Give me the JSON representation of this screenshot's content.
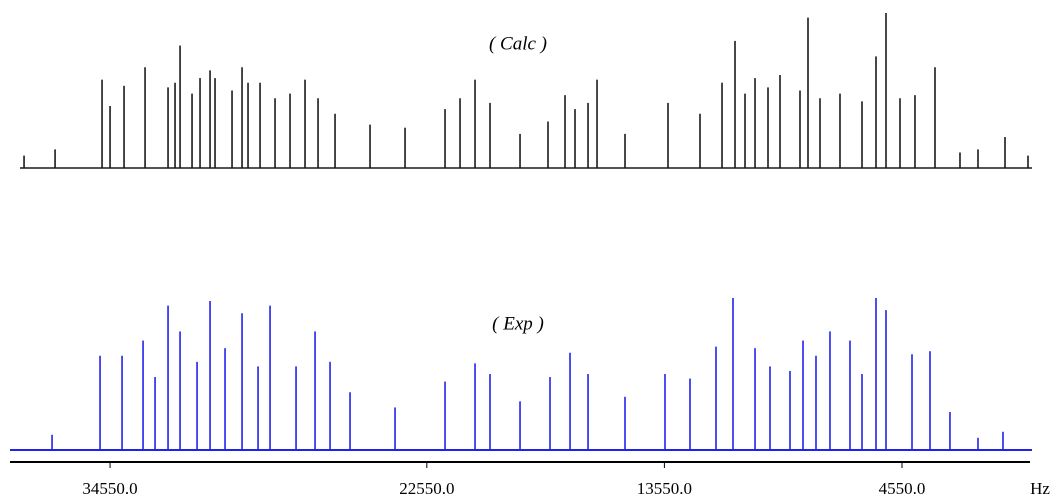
{
  "chart_data": {
    "type": "stick",
    "xlim": [
      38340,
      -300
    ],
    "ylim": [
      0,
      100
    ],
    "xticks": [
      {
        "value": 34550,
        "label": "34550.0"
      },
      {
        "value": 22550,
        "label": "22550.0"
      },
      {
        "value": 13550,
        "label": "13550.0"
      },
      {
        "value": 4550,
        "label": "4550.0"
      }
    ],
    "x_label": "Hz",
    "series": [
      {
        "name": "( Calc )",
        "color": "#1a1a1a",
        "x": [
          37808,
          36633,
          34853,
          34550,
          34020,
          33224,
          32353,
          32088,
          31898,
          31444,
          31141,
          30762,
          30573,
          29929,
          29550,
          29323,
          28868,
          28300,
          27732,
          27164,
          26671,
          26027,
          24701,
          23375,
          21860,
          21292,
          20724,
          20156,
          19019,
          17959,
          17315,
          16936,
          16443,
          16102,
          15042,
          13413,
          12201,
          11367,
          10875,
          10496,
          10117,
          9625,
          9170,
          8413,
          8110,
          7655,
          6898,
          6064,
          5534,
          5155,
          4625,
          4057,
          3299,
          2352,
          1670,
          647,
          -224
        ],
        "values": [
          8,
          12,
          57,
          40,
          53,
          65,
          52,
          55,
          79,
          48,
          58,
          63,
          58,
          50,
          65,
          55,
          55,
          45,
          48,
          57,
          45,
          35,
          28,
          26,
          38,
          45,
          57,
          42,
          22,
          30,
          47,
          38,
          42,
          57,
          22,
          42,
          35,
          55,
          82,
          48,
          58,
          52,
          60,
          50,
          97,
          45,
          48,
          43,
          72,
          100,
          45,
          47,
          65,
          10,
          12,
          20,
          8
        ]
      },
      {
        "name": "( Exp )",
        "color": "#2222ee",
        "x": [
          36747,
          34929,
          34095,
          33300,
          32845,
          32353,
          31898,
          31254,
          30762,
          30194,
          29550,
          28944,
          28489,
          27504,
          26784,
          26216,
          25459,
          23754,
          21860,
          20724,
          20156,
          19019,
          17883,
          17125,
          16443,
          15042,
          13527,
          12580,
          11595,
          10951,
          10117,
          9549,
          8792,
          8299,
          7807,
          7277,
          6519,
          6064,
          5534,
          5155,
          4170,
          3488,
          2732,
          1670,
          723
        ],
        "values": [
          10,
          62,
          62,
          72,
          48,
          95,
          78,
          58,
          98,
          67,
          90,
          55,
          95,
          55,
          78,
          58,
          38,
          28,
          45,
          57,
          50,
          32,
          48,
          64,
          50,
          35,
          50,
          47,
          68,
          100,
          67,
          55,
          52,
          72,
          62,
          78,
          72,
          50,
          100,
          92,
          63,
          65,
          25,
          8,
          12
        ]
      }
    ]
  }
}
